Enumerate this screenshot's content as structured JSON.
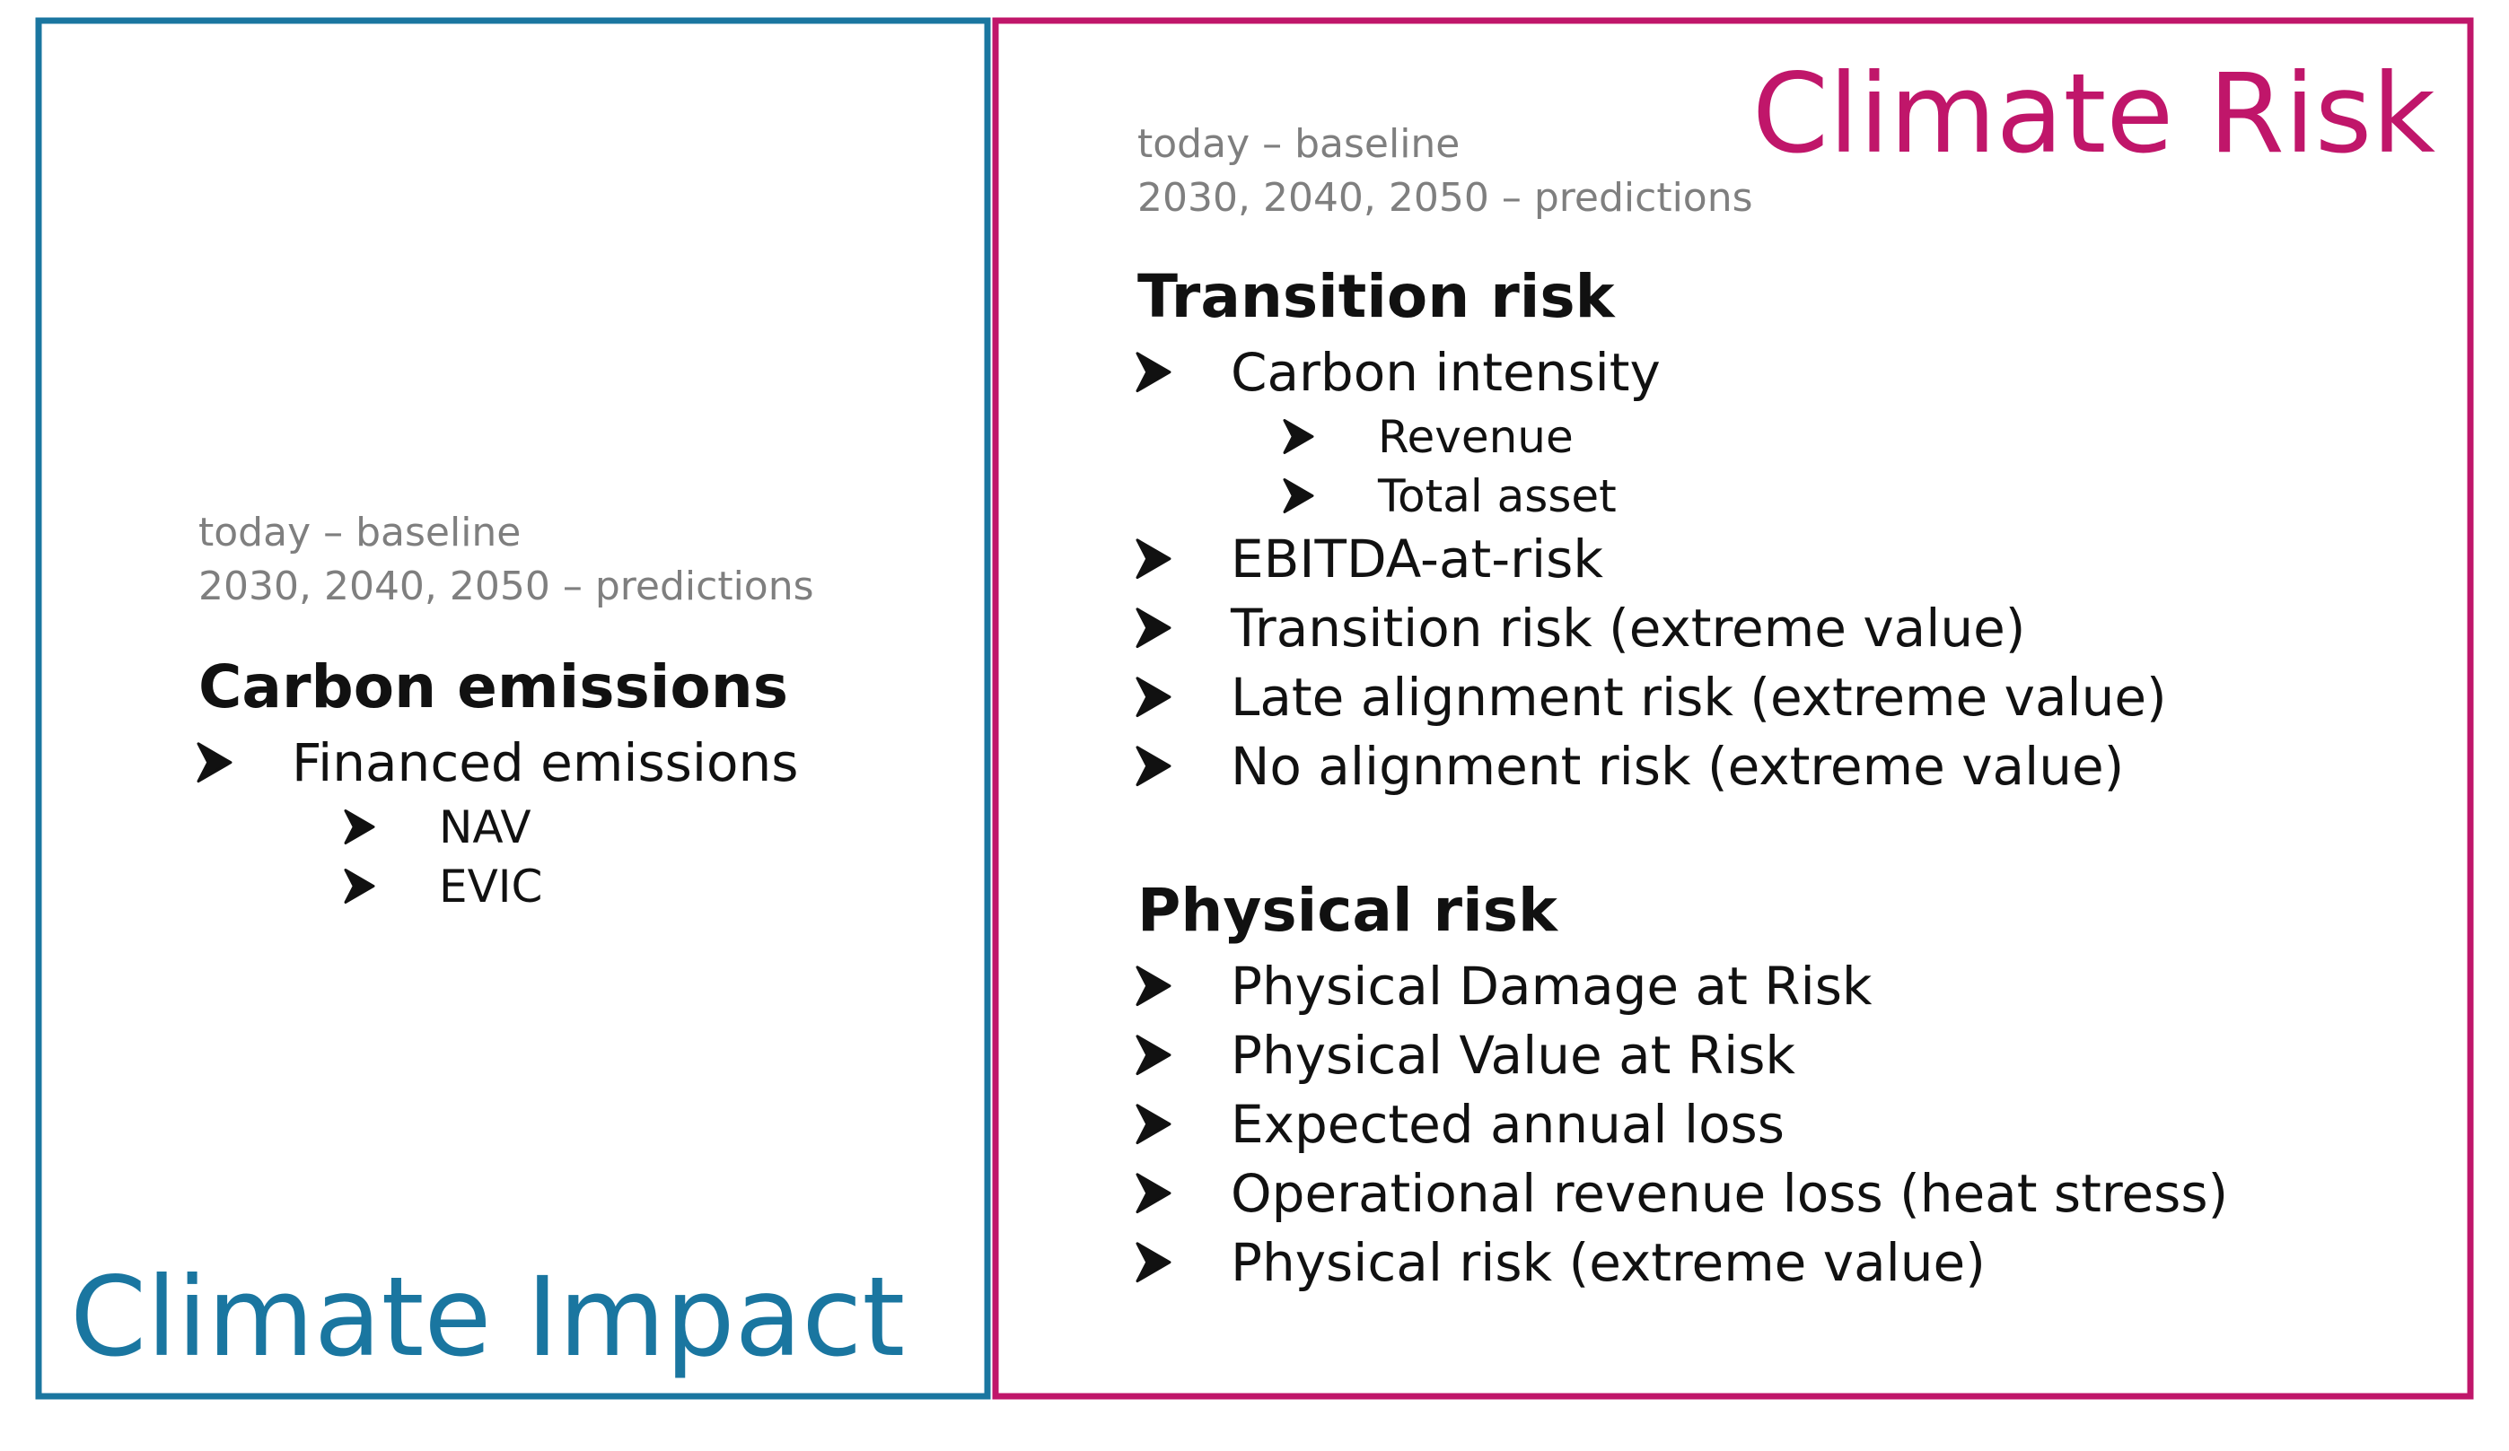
{
  "climate_impact": {
    "title": "Climate Impact",
    "notes": [
      "today – baseline",
      "2030, 2040, 2050 – predictions"
    ],
    "sections": [
      {
        "heading": "Carbon emissions",
        "items": [
          {
            "label": "Financed emissions",
            "subitems": [
              "NAV",
              "EVIC"
            ]
          }
        ]
      }
    ]
  },
  "climate_risk": {
    "title": "Climate Risk",
    "notes": [
      "today – baseline",
      "2030, 2040, 2050 – predictions"
    ],
    "sections": [
      {
        "heading": "Transition risk",
        "items": [
          {
            "label": "Carbon intensity",
            "subitems": [
              "Revenue",
              "Total asset"
            ]
          },
          {
            "label": "EBITDA-at-risk"
          },
          {
            "label": "Transition risk (extreme value)"
          },
          {
            "label": "Late alignment risk (extreme value)"
          },
          {
            "label": "No alignment risk (extreme value)"
          }
        ]
      },
      {
        "heading": "Physical risk",
        "items": [
          {
            "label": "Physical Damage at Risk"
          },
          {
            "label": "Physical Value at Risk"
          },
          {
            "label": "Expected annual loss"
          },
          {
            "label": "Operational revenue loss (heat stress)"
          },
          {
            "label": "Physical risk (extreme value)"
          }
        ]
      }
    ]
  }
}
